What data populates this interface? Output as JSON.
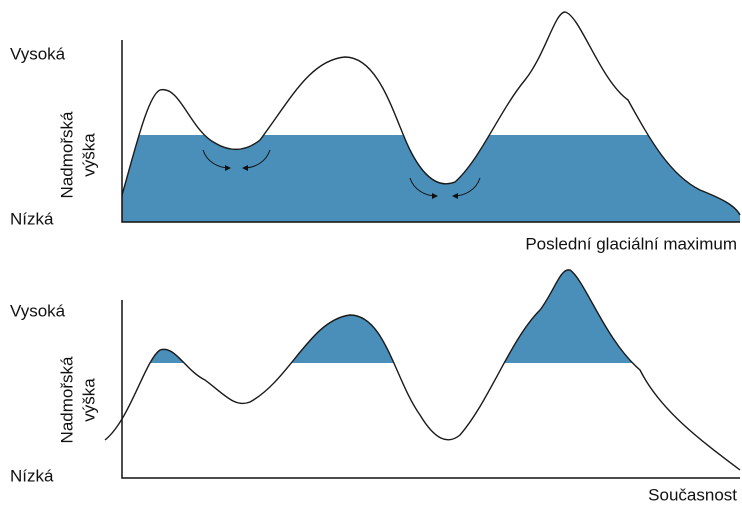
{
  "panels": [
    {
      "high_label": "Vysoká",
      "axis_label": [
        "Nadmořská",
        "výška"
      ],
      "low_label": "Nízká",
      "caption": "Poslední glaciální maximum"
    },
    {
      "high_label": "Vysoká",
      "axis_label": [
        "Nadmořská",
        "výška"
      ],
      "low_label": "Nízká",
      "caption": "Současnost"
    }
  ]
}
